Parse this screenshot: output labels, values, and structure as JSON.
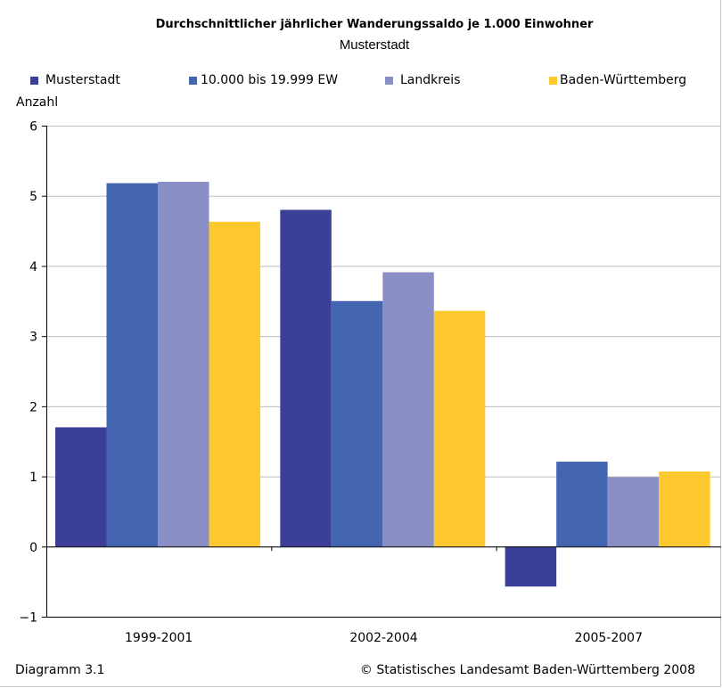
{
  "chart_data": {
    "type": "bar",
    "title": "Durchschnittlicher jährlicher Wanderungssaldo je 1.000 Einwohner",
    "subtitle": "Musterstadt",
    "ylabel": "Anzahl",
    "xlabel": "",
    "ylim": [
      -1,
      6
    ],
    "yticks": [
      "6",
      "5",
      "4",
      "3",
      "2",
      "1",
      "0",
      "−1"
    ],
    "ytick_values": [
      6,
      5,
      4,
      3,
      2,
      1,
      0,
      -1
    ],
    "categories": [
      "1999-2001",
      "2002-2004",
      "2005-2007"
    ],
    "series": [
      {
        "name": "Musterstadt",
        "color": "#3c3f98",
        "values": [
          1.7,
          4.8,
          -0.57
        ]
      },
      {
        "name": "10.000 bis 19.999 EW",
        "color": "#4466b0",
        "values": [
          5.18,
          3.5,
          1.21
        ]
      },
      {
        "name": "Landkreis",
        "color": "#8a8fc6",
        "values": [
          5.2,
          3.91,
          0.99
        ]
      },
      {
        "name": "Baden-Württemberg",
        "color": "#fec92f",
        "values": [
          4.63,
          3.36,
          1.07
        ]
      }
    ],
    "grid": true,
    "gridline_color": "#bdbdbd",
    "legend_position": "top"
  },
  "footer": {
    "left": "Diagramm 3.1",
    "right": "© Statistisches Landesamt Baden-Württemberg 2008"
  }
}
